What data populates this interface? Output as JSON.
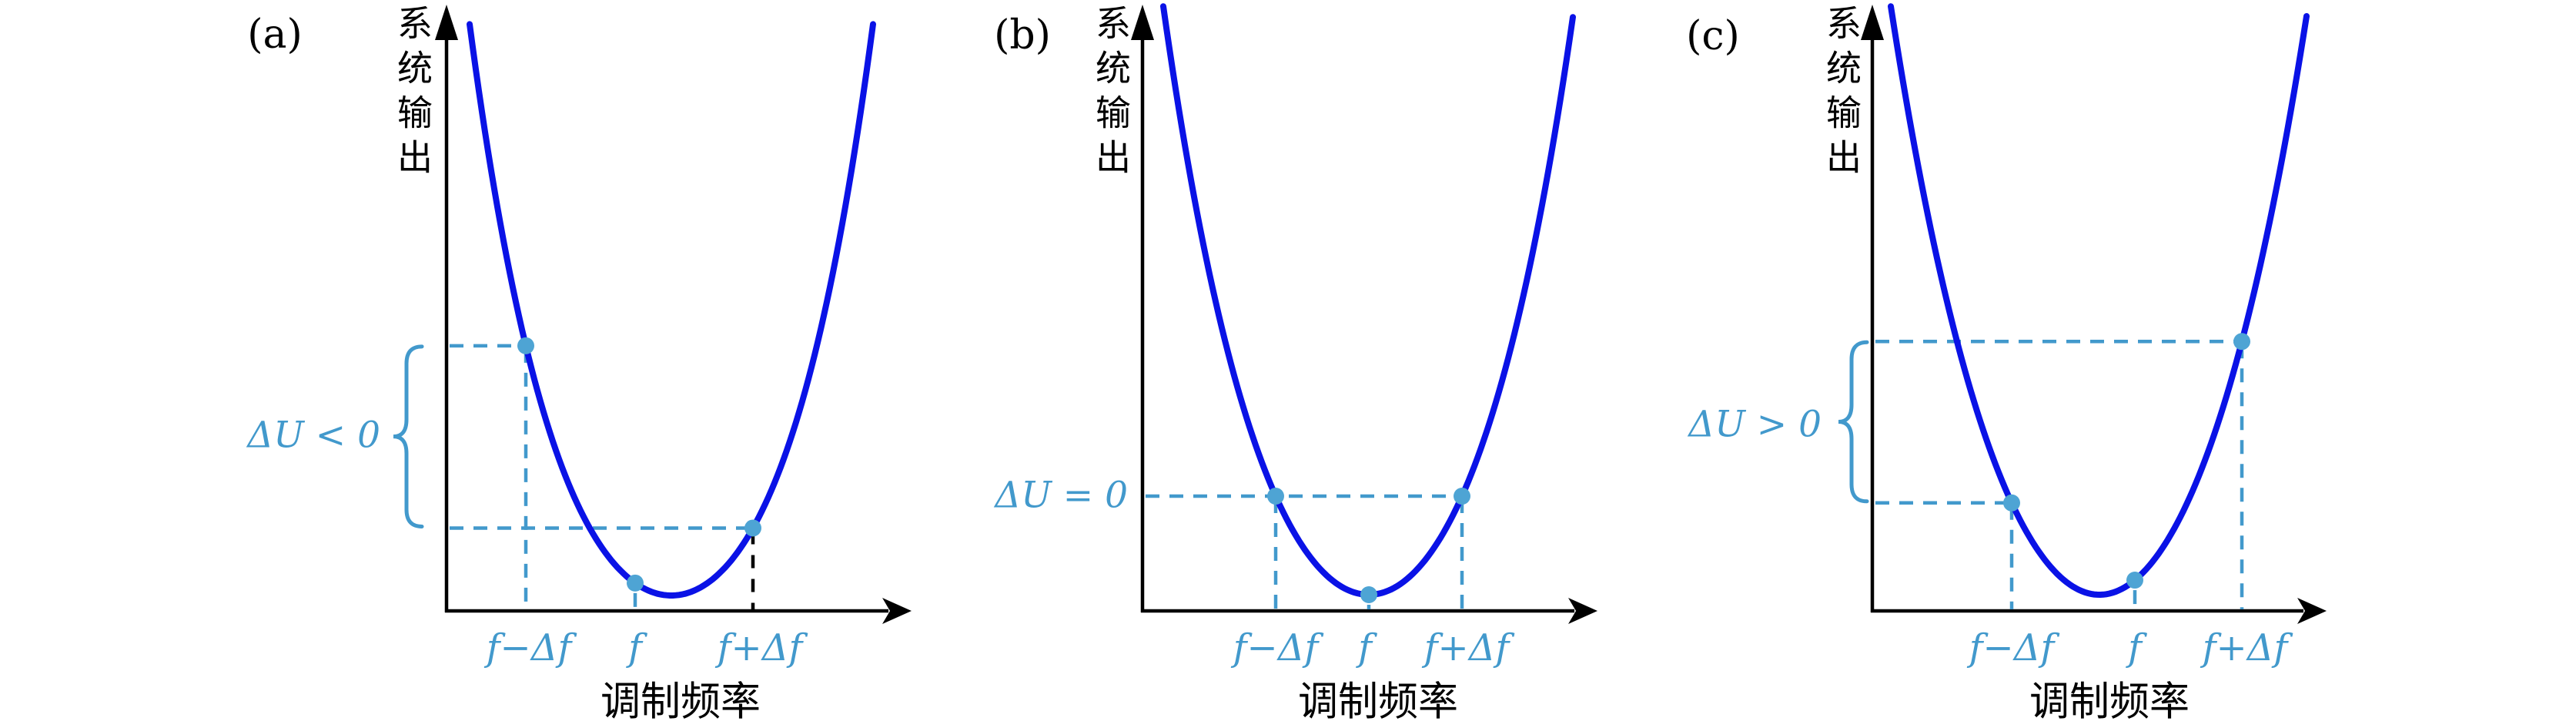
{
  "figure": {
    "colors": {
      "background": "#ffffff",
      "axis": "#000000",
      "curve_blue": "#0a12e6",
      "accent_lightblue": "#4299cc",
      "dot_lightblue": "#4ea4d4"
    },
    "panels": [
      {
        "label": "(a)",
        "ylabel": "系统输出",
        "xlabel": "调制频率",
        "ticks": [
          "f−Δf",
          "f",
          "f+Δf"
        ],
        "annotation": "ΔU < 0"
      },
      {
        "label": "(b)",
        "ylabel": "系统输出",
        "xlabel": "调制频率",
        "ticks": [
          "f−Δf",
          "f",
          "f+Δf"
        ],
        "annotation": "ΔU = 0"
      },
      {
        "label": "(c)",
        "ylabel": "系统输出",
        "xlabel": "调制频率",
        "ticks": [
          "f−Δf",
          "f",
          "f+Δf"
        ],
        "annotation": "ΔU > 0"
      }
    ]
  },
  "chart_data": [
    {
      "type": "line",
      "panel": "(a)",
      "title": "",
      "xlabel": "调制频率",
      "ylabel": "系统输出",
      "x_ticks": [
        "f−Δf",
        "f",
        "f+Δf"
      ],
      "curve": "U-shaped resonance response curve, minimum located between f and f+Δf",
      "curve_vertex_x": 0.32,
      "points": [
        {
          "x": "f−Δf",
          "y": 0.44
        },
        {
          "x": "f",
          "y": 0.05
        },
        {
          "x": "f+Δf",
          "y": 0.14
        }
      ],
      "annotation": "ΔU < 0",
      "relation": "output at f−Δf is higher than output at f+Δf",
      "guides": "light-blue dashed horizontals from y-axis to the f−Δf and f+Δf points; light-blue dashed verticals at f−Δf and f; black dashed vertical at f+Δf; light-blue brace on y-axis spanning the two output levels",
      "ylim": [
        0,
        1
      ],
      "grid": false,
      "legend": false
    },
    {
      "type": "line",
      "panel": "(b)",
      "title": "",
      "xlabel": "调制频率",
      "ylabel": "系统输出",
      "x_ticks": [
        "f−Δf",
        "f",
        "f+Δf"
      ],
      "curve": "U-shaped resonance response curve, minimum exactly at f",
      "curve_vertex_x": 0.0,
      "points": [
        {
          "x": "f−Δf",
          "y": 0.19
        },
        {
          "x": "f",
          "y": 0.03
        },
        {
          "x": "f+Δf",
          "y": 0.19
        }
      ],
      "annotation": "ΔU = 0",
      "relation": "outputs at f−Δf and f+Δf are equal",
      "guides": "single light-blue dashed horizontal from y-axis through both points; light-blue dashed verticals at f−Δf and f+Δf; dot with short dashed stub at vertex f",
      "ylim": [
        0,
        1
      ],
      "grid": false,
      "legend": false
    },
    {
      "type": "line",
      "panel": "(c)",
      "title": "",
      "xlabel": "调制频率",
      "ylabel": "系统输出",
      "x_ticks": [
        "f−Δf",
        "f",
        "f+Δf"
      ],
      "curve": "U-shaped resonance response curve, minimum located between f−Δf and f",
      "curve_vertex_x": -0.3,
      "points": [
        {
          "x": "f−Δf",
          "y": 0.18
        },
        {
          "x": "f",
          "y": 0.05
        },
        {
          "x": "f+Δf",
          "y": 0.44
        }
      ],
      "annotation": "ΔU > 0",
      "relation": "output at f+Δf is higher than output at f−Δf",
      "guides": "light-blue dashed horizontals from y-axis to the f−Δf and f+Δf points; light-blue dashed verticals at f−Δf, f and f+Δf; light-blue brace on y-axis spanning the two output levels",
      "ylim": [
        0,
        1
      ],
      "grid": false,
      "legend": false
    }
  ]
}
